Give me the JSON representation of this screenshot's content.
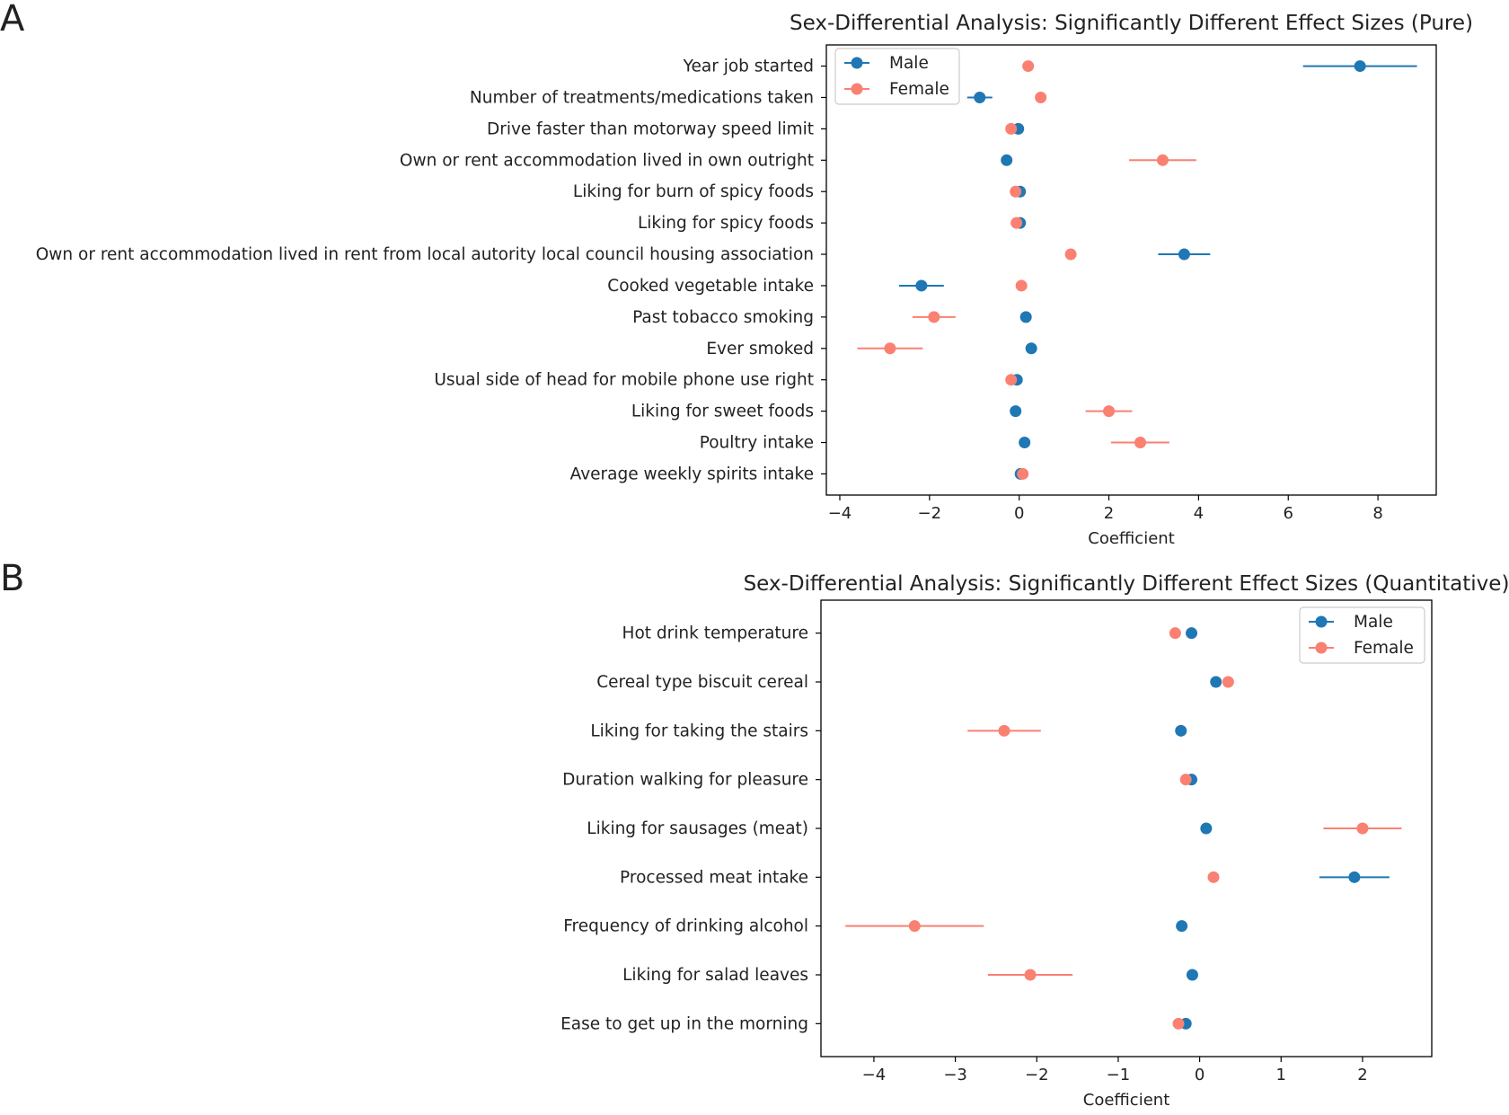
{
  "chart_data": [
    {
      "panel_label": "A",
      "type": "scatter",
      "subtype": "dot-whisker",
      "title": "Sex-Differential Analysis: Significantly Different Effect Sizes (Pure)",
      "xlabel": "Coefficient",
      "ylabel": "",
      "xlim": [
        -4.3,
        9.3
      ],
      "xticks": [
        -4,
        -2,
        0,
        2,
        4,
        6,
        8
      ],
      "xtick_labels": [
        "−4",
        "−2",
        "0",
        "2",
        "4",
        "6",
        "8"
      ],
      "grid": false,
      "legend_position": "top-left",
      "categories": [
        "Year job started",
        "Number of treatments/medications taken",
        "Drive faster than motorway speed limit",
        "Own or rent accommodation lived in own outright",
        "Liking for burn of spicy foods",
        "Liking for spicy foods",
        "Own or rent accommodation lived in rent from local autority local council housing association",
        "Cooked vegetable intake",
        "Past tobacco smoking",
        "Ever smoked",
        "Usual side of head for mobile phone use right",
        "Liking for sweet foods",
        "Poultry intake",
        "Average weekly spirits intake"
      ],
      "series": [
        {
          "name": "Male",
          "color": "#1f77b4",
          "values": [
            7.6,
            -0.88,
            -0.02,
            -0.28,
            0.02,
            0.02,
            3.68,
            -2.18,
            0.15,
            0.27,
            -0.05,
            -0.08,
            0.12,
            0.03
          ],
          "err": [
            1.27,
            0.28,
            0.05,
            0.05,
            0.05,
            0.05,
            0.58,
            0.5,
            0.04,
            0.04,
            0.04,
            0.04,
            0.04,
            0.04
          ]
        },
        {
          "name": "Female",
          "color": "#fa8072",
          "values": [
            0.2,
            0.48,
            -0.18,
            3.2,
            -0.08,
            -0.06,
            1.15,
            0.05,
            -1.9,
            -2.88,
            -0.18,
            2.0,
            2.7,
            0.08
          ],
          "err": [
            0.04,
            0.04,
            0.05,
            0.75,
            0.04,
            0.04,
            0.04,
            0.04,
            0.48,
            0.73,
            0.04,
            0.52,
            0.65,
            0.04
          ]
        }
      ]
    },
    {
      "panel_label": "B",
      "type": "scatter",
      "subtype": "dot-whisker",
      "title": "Sex-Differential Analysis: Significantly Different Effect Sizes (Quantitative)",
      "xlabel": "Coefficient",
      "ylabel": "",
      "xlim": [
        -4.65,
        2.85
      ],
      "xticks": [
        -4,
        -3,
        -2,
        -1,
        0,
        1,
        2
      ],
      "xtick_labels": [
        "−4",
        "−3",
        "−2",
        "−1",
        "0",
        "1",
        "2"
      ],
      "grid": false,
      "legend_position": "top-right",
      "categories": [
        "Hot drink temperature",
        "Cereal type biscuit cereal",
        "Liking for taking the stairs",
        "Duration walking for pleasure",
        "Liking for sausages (meat)",
        "Processed meat intake",
        "Frequency of drinking alcohol",
        "Liking for salad leaves",
        "Ease to get up in the morning"
      ],
      "series": [
        {
          "name": "Male",
          "color": "#1f77b4",
          "values": [
            -0.1,
            0.2,
            -0.23,
            -0.1,
            0.08,
            1.9,
            -0.22,
            -0.09,
            -0.17
          ],
          "err": [
            0.03,
            0.03,
            0.03,
            0.03,
            0.03,
            0.43,
            0.03,
            0.03,
            0.03
          ]
        },
        {
          "name": "Female",
          "color": "#fa8072",
          "values": [
            -0.3,
            0.35,
            -2.4,
            -0.17,
            2.0,
            0.17,
            -3.5,
            -2.08,
            -0.26
          ],
          "err": [
            0.03,
            0.03,
            0.45,
            0.03,
            0.48,
            0.03,
            0.85,
            0.52,
            0.03
          ]
        }
      ]
    }
  ]
}
